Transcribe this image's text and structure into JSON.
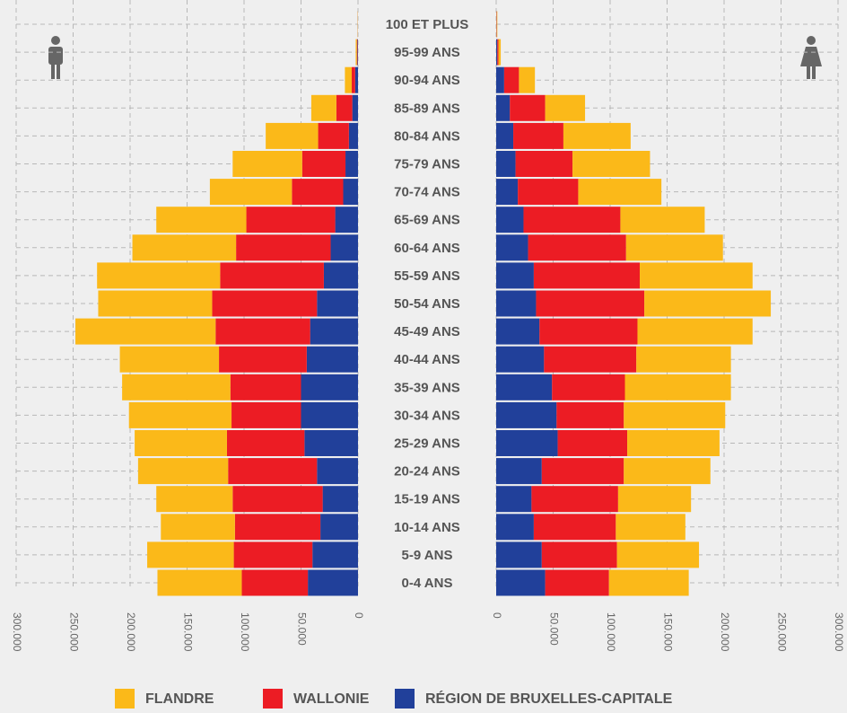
{
  "chart_data": {
    "type": "pyramid",
    "categories": [
      "100 ET PLUS",
      "95-99 ANS",
      "90-94 ANS",
      "85-89 ANS",
      "80-84 ANS",
      "75-79 ANS",
      "70-74 ANS",
      "65-69 ANS",
      "60-64 ANS",
      "55-59 ANS",
      "50-54 ANS",
      "45-49 ANS",
      "40-44 ANS",
      "35-39 ANS",
      "30-34 ANS",
      "25-29 ANS",
      "20-24 ANS",
      "15-19 ANS",
      "10-14 ANS",
      "5-9 ANS",
      "0-4 ANS"
    ],
    "series": [
      {
        "name": "FLANDRE",
        "color": "#fbb919",
        "male": [
          200,
          1000,
          6000,
          22000,
          46000,
          61000,
          72000,
          79000,
          91000,
          108000,
          100000,
          123000,
          87000,
          95000,
          90000,
          81000,
          79000,
          67000,
          65000,
          76000,
          74000
        ],
        "female": [
          500,
          2000,
          14000,
          35000,
          59000,
          68000,
          73000,
          74000,
          85000,
          99000,
          111000,
          101000,
          83000,
          93000,
          89000,
          81000,
          76000,
          64000,
          61000,
          72000,
          70000
        ]
      },
      {
        "name": "WALLONIE",
        "color": "#ec1c24",
        "male": [
          100,
          500,
          3000,
          14000,
          27000,
          38000,
          45000,
          78000,
          83000,
          91000,
          92000,
          83000,
          77000,
          62000,
          61000,
          68000,
          78000,
          79000,
          75000,
          69000,
          58000
        ],
        "female": [
          300,
          1000,
          13000,
          31000,
          44000,
          50000,
          53000,
          85000,
          86000,
          93000,
          95000,
          86000,
          81000,
          64000,
          59000,
          61000,
          72000,
          76000,
          72000,
          66000,
          56000
        ]
      },
      {
        "name": "RÉGION DE BRUXELLES-CAPITALE",
        "color": "#21409a",
        "male": [
          100,
          500,
          2500,
          5000,
          8000,
          11000,
          13000,
          20000,
          24000,
          30000,
          36000,
          42000,
          45000,
          50000,
          50000,
          47000,
          36000,
          31000,
          33000,
          40000,
          44000
        ],
        "female": [
          200,
          1000,
          7000,
          12000,
          15000,
          17000,
          19000,
          24000,
          28000,
          33000,
          35000,
          38000,
          42000,
          49000,
          53000,
          54000,
          40000,
          31000,
          33000,
          40000,
          43000
        ]
      }
    ],
    "xlim": [
      0,
      300000
    ],
    "xticks": [
      0,
      {
        "value": 50000,
        "label": "50.000"
      },
      {
        "value": 100000,
        "label": "100.000"
      },
      {
        "value": 150000,
        "label": "150.000"
      },
      {
        "value": 200000,
        "label": "200.000"
      },
      {
        "value": 250000,
        "label": "250.000"
      },
      {
        "value": 300000,
        "label": "300.000"
      }
    ],
    "grid": true
  }
}
